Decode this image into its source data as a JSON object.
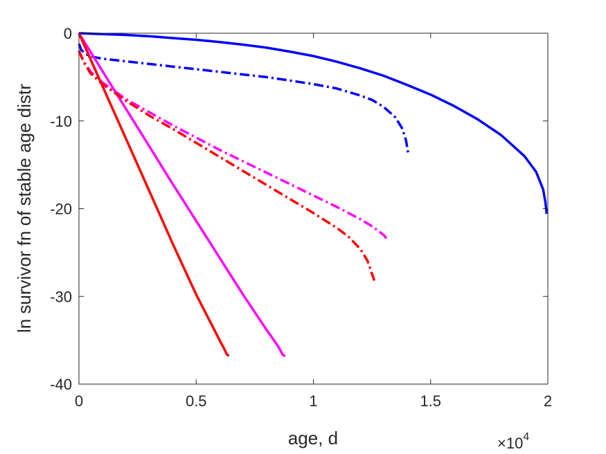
{
  "chart_data": {
    "type": "line",
    "title": "",
    "xlabel": "age, d",
    "ylabel": "ln survivor fn of stable age distr",
    "x_multiplier": {
      "base": "×10",
      "exponent": "4"
    },
    "xlim": [
      0,
      20000
    ],
    "ylim": [
      -40,
      0
    ],
    "xticks": [
      0,
      5000,
      10000,
      15000,
      20000
    ],
    "xtick_labels": [
      "0",
      "0.5",
      "1",
      "1.5",
      "2"
    ],
    "yticks": [
      0,
      -10,
      -20,
      -30,
      -40
    ],
    "ytick_labels": [
      "0",
      "-10",
      "-20",
      "-30",
      "-40"
    ],
    "grid": false,
    "legend": "none",
    "series": [
      {
        "color": "#0000ff",
        "style": "solid",
        "x": [
          0,
          1000,
          2000,
          3000,
          4000,
          5000,
          6000,
          7000,
          8000,
          9000,
          10000,
          11000,
          12000,
          13000,
          14000,
          15000,
          16000,
          17000,
          18000,
          19000,
          19500,
          19800,
          19900,
          19950
        ],
        "y": [
          0,
          -0.1,
          -0.2,
          -0.35,
          -0.55,
          -0.75,
          -1.0,
          -1.3,
          -1.65,
          -2.1,
          -2.6,
          -3.25,
          -4.0,
          -4.85,
          -5.9,
          -7.0,
          -8.3,
          -9.8,
          -11.6,
          -14.0,
          -15.8,
          -17.8,
          -19.3,
          -20.6
        ]
      },
      {
        "color": "#0000ff",
        "style": "dashdot",
        "x": [
          0,
          100,
          300,
          600,
          1000,
          2000,
          3000,
          4000,
          5000,
          6000,
          7000,
          8000,
          9000,
          10000,
          11000,
          12000,
          12500,
          13000,
          13500,
          13800,
          13950,
          14050
        ],
        "y": [
          -1.2,
          -1.9,
          -2.4,
          -2.7,
          -2.9,
          -3.2,
          -3.5,
          -3.8,
          -4.1,
          -4.4,
          -4.7,
          -5.0,
          -5.4,
          -5.8,
          -6.3,
          -7.1,
          -7.6,
          -8.4,
          -9.6,
          -10.9,
          -12.2,
          -13.8
        ]
      },
      {
        "color": "#ff00ff",
        "style": "solid",
        "x": [
          0,
          1000,
          2000,
          3000,
          4000,
          5000,
          6000,
          7000,
          8000,
          8500,
          8700,
          8800
        ],
        "y": [
          0,
          -4.3,
          -8.6,
          -12.9,
          -17.2,
          -21.4,
          -25.6,
          -29.8,
          -33.8,
          -35.7,
          -36.7,
          -36.8
        ]
      },
      {
        "color": "#ff00ff",
        "style": "dashdot",
        "x": [
          0,
          200,
          500,
          1000,
          2000,
          3000,
          4000,
          5000,
          6000,
          7000,
          8000,
          9000,
          10000,
          11000,
          12000,
          12500,
          13000,
          13150
        ],
        "y": [
          -2.0,
          -3.2,
          -4.4,
          -5.6,
          -7.5,
          -9.0,
          -10.5,
          -11.9,
          -13.3,
          -14.6,
          -15.9,
          -17.2,
          -18.5,
          -19.8,
          -21.2,
          -22.0,
          -23.0,
          -23.5
        ]
      },
      {
        "color": "#ff0000",
        "style": "solid",
        "x": [
          0,
          1000,
          2000,
          3000,
          4000,
          5000,
          6000,
          6200,
          6300,
          6400
        ],
        "y": [
          0,
          -6.0,
          -12.0,
          -18.0,
          -24.0,
          -29.8,
          -35.0,
          -36.0,
          -36.6,
          -36.8
        ]
      },
      {
        "color": "#ff0000",
        "style": "dashdot",
        "x": [
          0,
          200,
          500,
          1000,
          2000,
          3000,
          4000,
          5000,
          6000,
          7000,
          8000,
          9000,
          10000,
          11000,
          11500,
          12000,
          12300,
          12600
        ],
        "y": [
          -2.0,
          -3.3,
          -4.6,
          -5.8,
          -7.7,
          -9.4,
          -10.9,
          -12.5,
          -14.1,
          -15.7,
          -17.3,
          -18.9,
          -20.5,
          -22.2,
          -23.2,
          -24.6,
          -25.9,
          -28.2
        ]
      }
    ]
  }
}
